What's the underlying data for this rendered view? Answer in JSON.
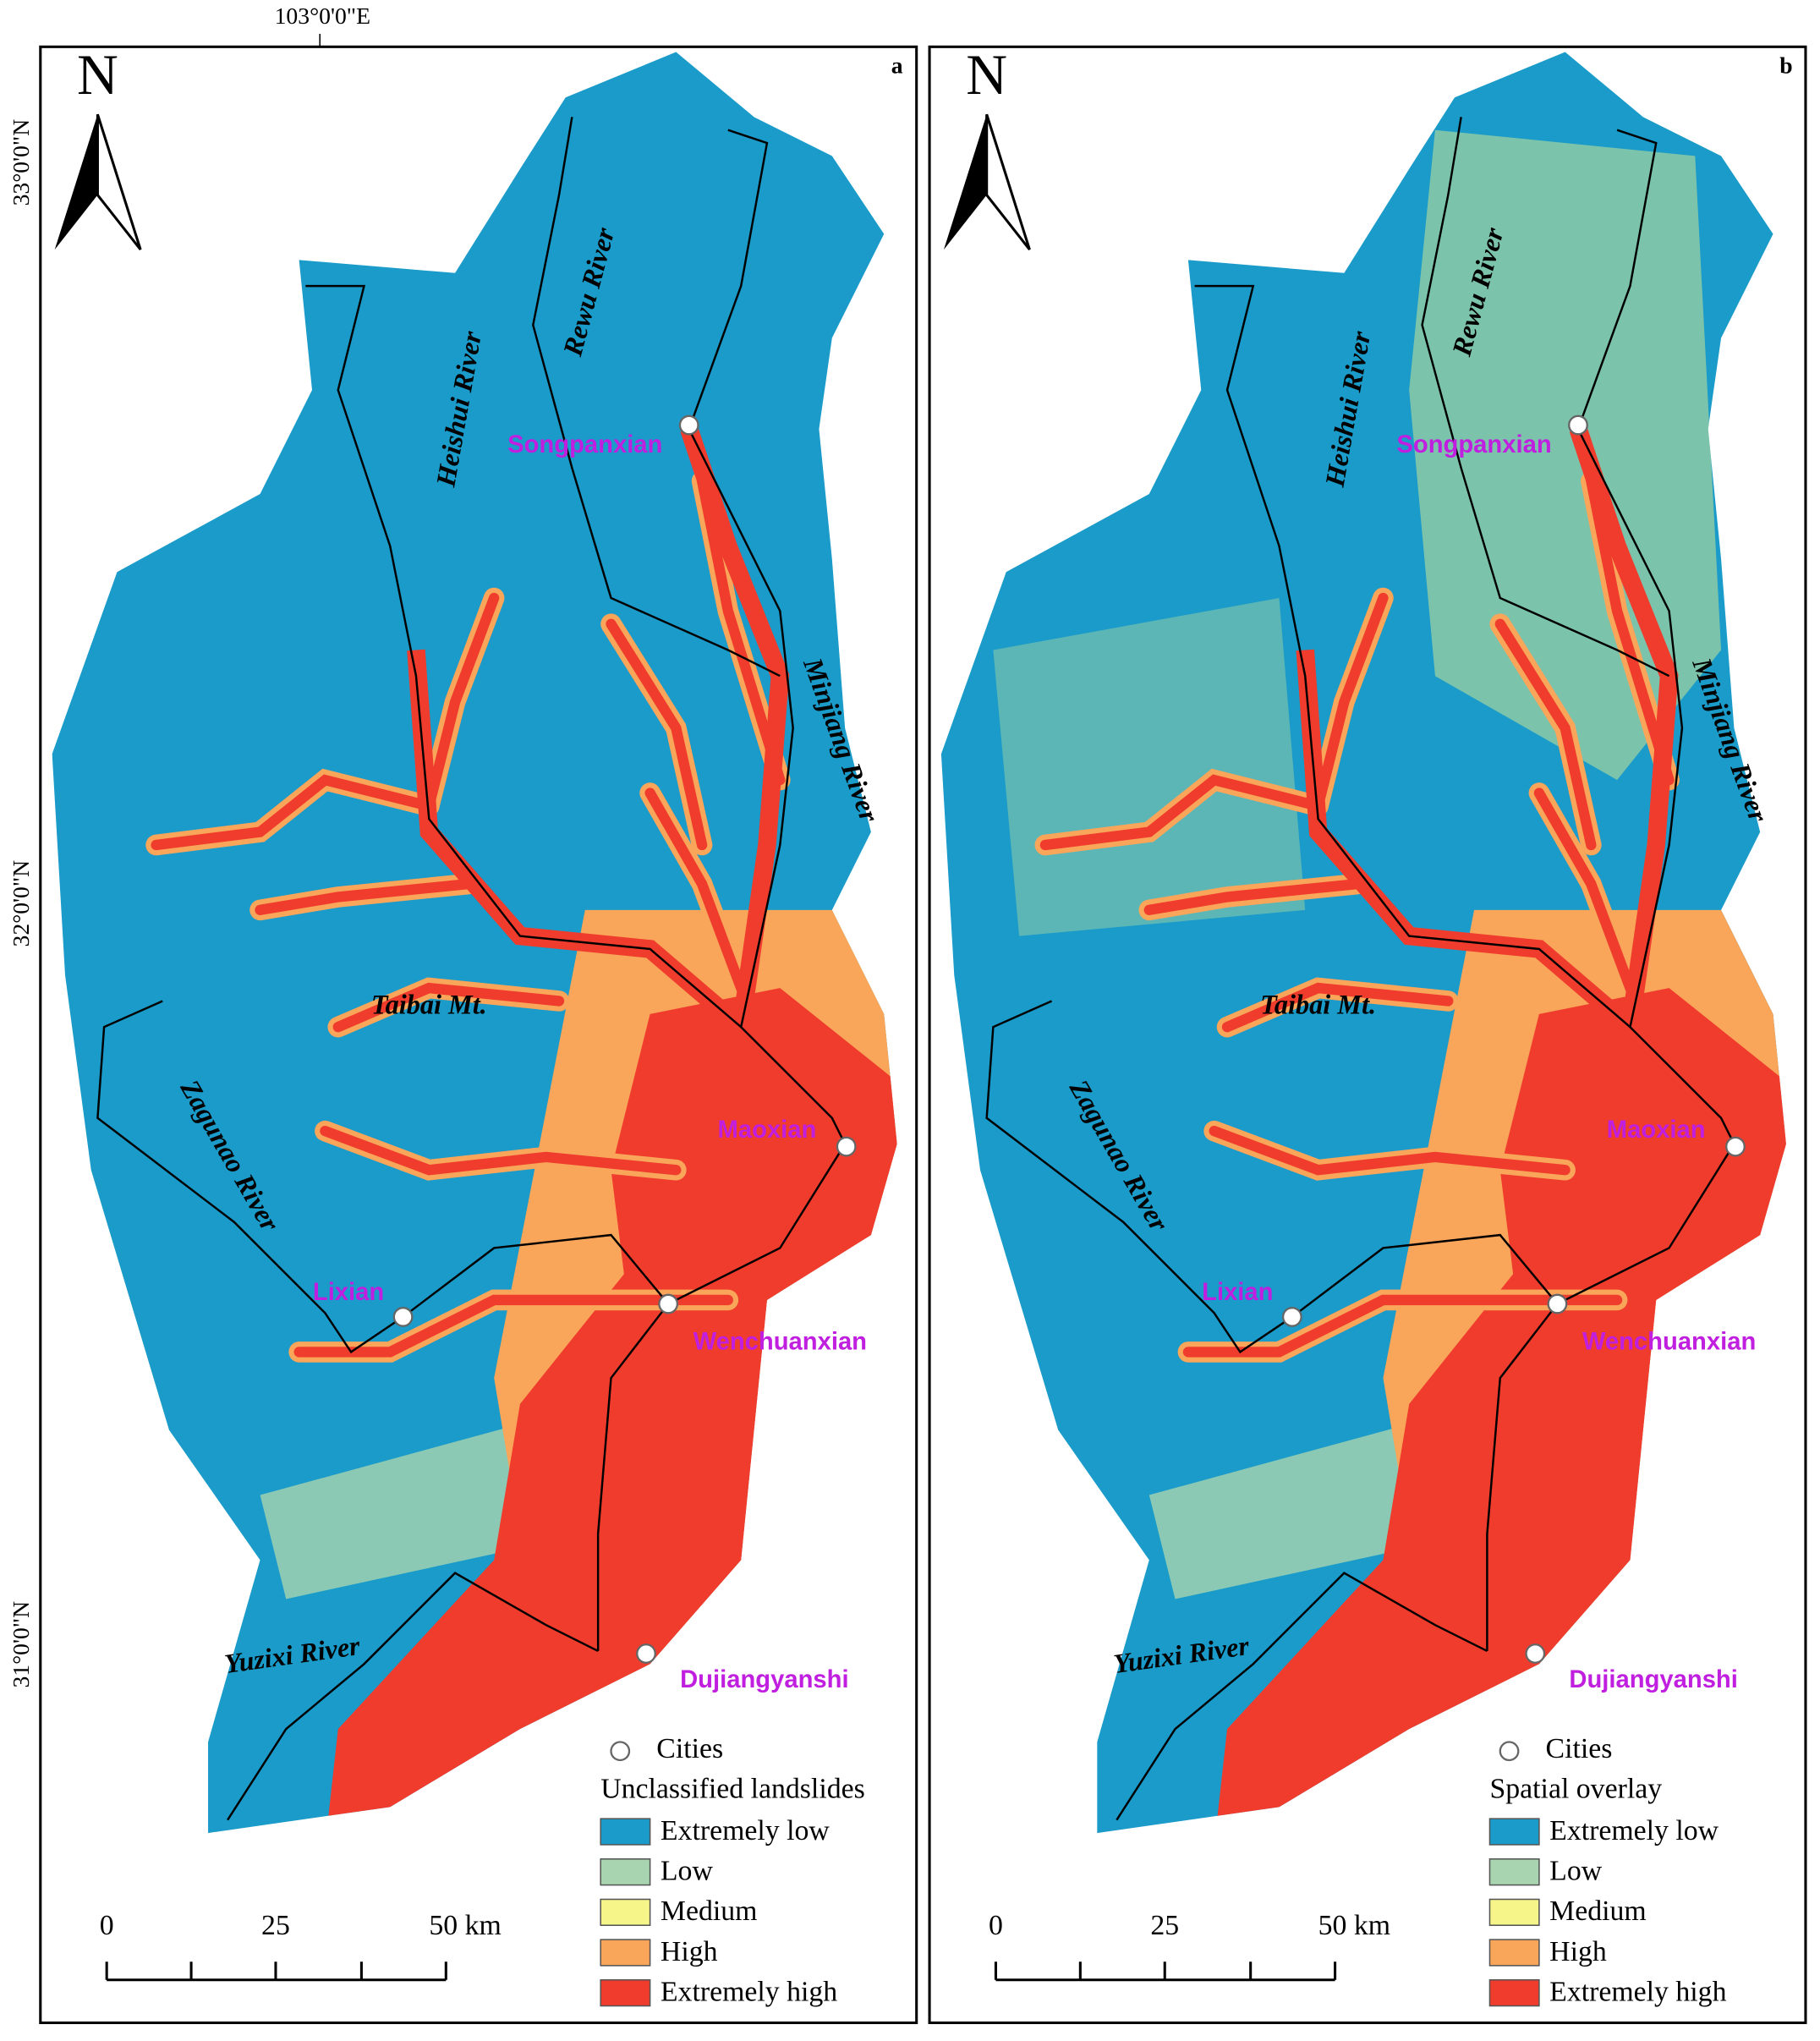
{
  "axes": {
    "top_label": "103°0'0\"E",
    "left_labels": [
      "33°0'0\"N",
      "32°0'0\"N",
      "31°0'0\"N"
    ]
  },
  "panels": [
    {
      "letter": "a",
      "north": "N",
      "mountain": "Taibai Mt.",
      "rivers": [
        "Heishui River",
        "Rewu River",
        "Minjiang River",
        "Zagunao River",
        "Yuzixi River"
      ],
      "cities": [
        "Songpanxian",
        "Maoxian",
        "Lixian",
        "Wenchuanxian",
        "Dujiangyanshi"
      ],
      "legend": {
        "cities": "Cities",
        "title": "Unclassified landslides",
        "classes": [
          {
            "label": "Extremely low",
            "color": "#1a9bc9"
          },
          {
            "label": "Low",
            "color": "#a8d5b0"
          },
          {
            "label": "Medium",
            "color": "#f5f58a"
          },
          {
            "label": "High",
            "color": "#f9a55a"
          },
          {
            "label": "Extremely high",
            "color": "#f03c2d"
          }
        ]
      },
      "scale": [
        "0",
        "25",
        "50 km"
      ]
    },
    {
      "letter": "b",
      "north": "N",
      "mountain": "Taibai Mt.",
      "rivers": [
        "Heishui River",
        "Rewu River",
        "Minjiang River",
        "Zagunao River",
        "Yuzixi River"
      ],
      "cities": [
        "Songpanxian",
        "Maoxian",
        "Lixian",
        "Wenchuanxian",
        "Dujiangyanshi"
      ],
      "legend": {
        "cities": "Cities",
        "title": "Spatial overlay",
        "classes": [
          {
            "label": "Extremely low",
            "color": "#1a9bc9"
          },
          {
            "label": "Low",
            "color": "#a8d5b0"
          },
          {
            "label": "Medium",
            "color": "#f5f58a"
          },
          {
            "label": "High",
            "color": "#f9a55a"
          },
          {
            "label": "Extremely high",
            "color": "#f03c2d"
          }
        ]
      },
      "scale": [
        "0",
        "25",
        "50 km"
      ]
    }
  ]
}
